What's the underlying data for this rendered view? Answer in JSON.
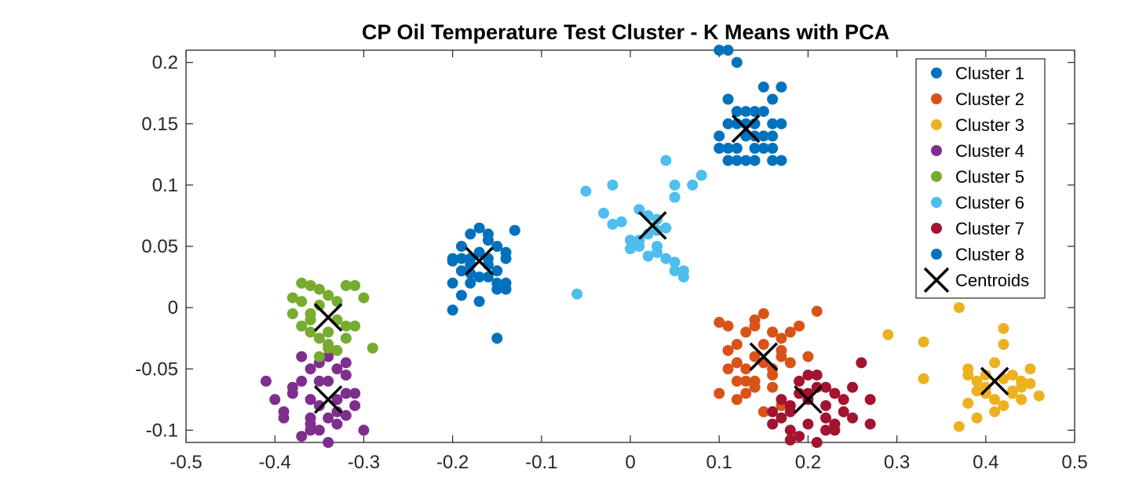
{
  "chart_data": {
    "type": "scatter",
    "title": "CP Oil Temperature Test Cluster - K Means with PCA",
    "xlabel": "",
    "ylabel": "",
    "xlim": [
      -0.5,
      0.5
    ],
    "ylim": [
      -0.11,
      0.21
    ],
    "xticks": [
      -0.5,
      -0.4,
      -0.3,
      -0.2,
      -0.1,
      0,
      0.1,
      0.2,
      0.3,
      0.4,
      0.5
    ],
    "xtick_labels": [
      "-0.5",
      "-0.4",
      "-0.3",
      "-0.2",
      "-0.1",
      "0",
      "0.1",
      "0.2",
      "0.3",
      "0.4",
      "0.5"
    ],
    "yticks": [
      -0.1,
      -0.05,
      0,
      0.05,
      0.1,
      0.15,
      0.2
    ],
    "ytick_labels": [
      "-0.1",
      "-0.05",
      "0",
      "0.05",
      "0.1",
      "0.15",
      "0.2"
    ],
    "grid": false,
    "legend_position": "top-right",
    "series": [
      {
        "name": "Cluster 1",
        "color": "#0072BD",
        "x": [
          0.1,
          0.11,
          0.12,
          0.11,
          0.12,
          0.13,
          0.14,
          0.15,
          0.14,
          0.16,
          0.17,
          0.1,
          0.11,
          0.13,
          0.15,
          0.16,
          0.17,
          0.12,
          0.14,
          0.11,
          0.16,
          0.13,
          0.15,
          0.12,
          0.1,
          0.17,
          0.14,
          0.12,
          0.15,
          0.16,
          0.12,
          0.14,
          0.11,
          0.13,
          0.16
        ],
        "y": [
          0.21,
          0.21,
          0.16,
          0.17,
          0.15,
          0.14,
          0.15,
          0.16,
          0.13,
          0.14,
          0.15,
          0.13,
          0.13,
          0.12,
          0.14,
          0.13,
          0.12,
          0.12,
          0.12,
          0.12,
          0.12,
          0.15,
          0.13,
          0.16,
          0.14,
          0.18,
          0.16,
          0.2,
          0.18,
          0.17,
          0.13,
          0.14,
          0.15,
          0.16,
          0.15
        ]
      },
      {
        "name": "Cluster 2",
        "color": "#D95319",
        "x": [
          0.1,
          0.11,
          0.12,
          0.13,
          0.14,
          0.15,
          0.16,
          0.17,
          0.1,
          0.11,
          0.13,
          0.14,
          0.15,
          0.16,
          0.17,
          0.18,
          0.19,
          0.12,
          0.14,
          0.16,
          0.18,
          0.2,
          0.21,
          0.11,
          0.12,
          0.13,
          0.15,
          0.17,
          0.16,
          0.14,
          0.12,
          0.15,
          0.17,
          0.13,
          0.14,
          0.16
        ],
        "y": [
          -0.012,
          -0.015,
          -0.03,
          -0.02,
          -0.01,
          -0.005,
          -0.02,
          -0.035,
          -0.07,
          -0.05,
          -0.06,
          -0.04,
          -0.045,
          -0.055,
          -0.025,
          -0.02,
          -0.015,
          -0.075,
          -0.065,
          -0.05,
          -0.045,
          -0.04,
          -0.003,
          -0.035,
          -0.06,
          -0.07,
          -0.085,
          -0.08,
          -0.02,
          -0.015,
          -0.045,
          -0.03,
          -0.04,
          -0.05,
          -0.06,
          -0.065
        ]
      },
      {
        "name": "Cluster 3",
        "color": "#EDB120",
        "x": [
          0.29,
          0.33,
          0.33,
          0.37,
          0.38,
          0.39,
          0.4,
          0.41,
          0.42,
          0.43,
          0.44,
          0.45,
          0.46,
          0.38,
          0.4,
          0.42,
          0.44,
          0.41,
          0.39,
          0.43,
          0.45,
          0.37,
          0.42,
          0.4,
          0.41,
          0.38,
          0.43,
          0.44,
          0.42,
          0.39
        ],
        "y": [
          -0.022,
          -0.028,
          -0.058,
          0,
          -0.05,
          -0.06,
          -0.055,
          -0.045,
          -0.03,
          -0.055,
          -0.065,
          -0.05,
          -0.072,
          -0.078,
          -0.07,
          -0.08,
          -0.06,
          -0.085,
          -0.09,
          -0.068,
          -0.062,
          -0.097,
          -0.017,
          -0.065,
          -0.075,
          -0.055,
          -0.07,
          -0.075,
          -0.058,
          -0.068
        ]
      },
      {
        "name": "Cluster 4",
        "color": "#7E2F8E",
        "x": [
          -0.41,
          -0.4,
          -0.39,
          -0.38,
          -0.37,
          -0.36,
          -0.35,
          -0.34,
          -0.33,
          -0.32,
          -0.31,
          -0.3,
          -0.39,
          -0.37,
          -0.36,
          -0.35,
          -0.33,
          -0.32,
          -0.34,
          -0.36,
          -0.38,
          -0.35,
          -0.33,
          -0.31,
          -0.36,
          -0.34,
          -0.32,
          -0.37,
          -0.35,
          -0.33,
          -0.34,
          -0.36,
          -0.32
        ],
        "y": [
          -0.06,
          -0.075,
          -0.09,
          -0.07,
          -0.06,
          -0.05,
          -0.045,
          -0.04,
          -0.05,
          -0.055,
          -0.07,
          -0.1,
          -0.085,
          -0.105,
          -0.09,
          -0.1,
          -0.095,
          -0.07,
          -0.11,
          -0.075,
          -0.065,
          -0.08,
          -0.085,
          -0.08,
          -0.095,
          -0.06,
          -0.045,
          -0.04,
          -0.06,
          -0.075,
          -0.09,
          -0.1,
          -0.088
        ]
      },
      {
        "name": "Cluster 5",
        "color": "#77AC30",
        "x": [
          -0.38,
          -0.37,
          -0.36,
          -0.35,
          -0.34,
          -0.33,
          -0.32,
          -0.31,
          -0.3,
          -0.29,
          -0.38,
          -0.37,
          -0.36,
          -0.35,
          -0.34,
          -0.33,
          -0.31,
          -0.36,
          -0.34,
          -0.32,
          -0.37,
          -0.35,
          -0.33,
          -0.34,
          -0.36,
          -0.32,
          -0.35
        ],
        "y": [
          0.008,
          0.02,
          0.018,
          0.015,
          0.01,
          0.005,
          0.018,
          0.018,
          0.008,
          -0.033,
          -0.005,
          -0.015,
          -0.02,
          -0.025,
          -0.03,
          -0.035,
          -0.015,
          -0.01,
          -0.02,
          -0.025,
          0.005,
          0.002,
          -0.01,
          -0.033,
          -0.005,
          -0.015,
          -0.04
        ]
      },
      {
        "name": "Cluster 6",
        "color": "#4DBEEE",
        "x": [
          -0.06,
          -0.05,
          -0.03,
          -0.02,
          -0.02,
          0,
          0.01,
          0.02,
          0.03,
          0.04,
          0.05,
          0.06,
          0.07,
          0.08,
          0.05,
          0.04,
          0.03,
          0.02,
          0.01,
          0,
          -0.01,
          0.02,
          0.03,
          0.04,
          0.05,
          0.06,
          0.01,
          0.03,
          0.05
        ],
        "y": [
          0.011,
          0.095,
          0.077,
          0.068,
          0.1,
          0.055,
          0.08,
          0.06,
          0.072,
          0.065,
          0.1,
          0.03,
          0.1,
          0.108,
          0.037,
          0.04,
          0.05,
          0.042,
          0.05,
          0.048,
          0.07,
          0.075,
          0.063,
          0.12,
          0.09,
          0.025,
          0.055,
          0.045,
          0.03
        ]
      },
      {
        "name": "Cluster 7",
        "color": "#A2142F",
        "x": [
          0.16,
          0.17,
          0.18,
          0.19,
          0.2,
          0.21,
          0.22,
          0.23,
          0.24,
          0.25,
          0.26,
          0.27,
          0.18,
          0.2,
          0.22,
          0.24,
          0.19,
          0.21,
          0.23,
          0.17,
          0.2,
          0.22,
          0.25,
          0.16,
          0.18,
          0.21,
          0.19,
          0.23,
          0.27,
          0.2,
          0.22,
          0.18
        ],
        "y": [
          -0.085,
          -0.075,
          -0.08,
          -0.07,
          -0.055,
          -0.055,
          -0.065,
          -0.07,
          -0.075,
          -0.065,
          -0.045,
          -0.075,
          -0.1,
          -0.095,
          -0.09,
          -0.085,
          -0.105,
          -0.11,
          -0.1,
          -0.09,
          -0.075,
          -0.08,
          -0.09,
          -0.095,
          -0.085,
          -0.065,
          -0.06,
          -0.095,
          -0.095,
          -0.07,
          -0.1,
          -0.108
        ]
      },
      {
        "name": "Cluster 8",
        "color": "#0072BD",
        "x": [
          -0.2,
          -0.2,
          -0.19,
          -0.19,
          -0.18,
          -0.18,
          -0.17,
          -0.17,
          -0.16,
          -0.16,
          -0.15,
          -0.15,
          -0.14,
          -0.14,
          -0.13,
          -0.2,
          -0.19,
          -0.18,
          -0.17,
          -0.16,
          -0.15,
          -0.14,
          -0.19,
          -0.17,
          -0.15,
          -0.18,
          -0.16,
          -0.2,
          -0.18,
          -0.15,
          -0.17,
          -0.19,
          -0.16,
          -0.14
        ],
        "y": [
          -0.002,
          0.02,
          0.03,
          0.05,
          0.04,
          0.06,
          0.065,
          0.045,
          0.055,
          0.025,
          0.015,
          0.03,
          0.04,
          0.02,
          0.063,
          0.04,
          0.01,
          0.035,
          0.005,
          0.04,
          -0.025,
          0.045,
          0.03,
          0.045,
          0.02,
          0.02,
          0.035,
          0.038,
          0.028,
          0.05,
          0.025,
          0.04,
          0.06,
          0.015
        ]
      }
    ],
    "centroids": {
      "name": "Centroids",
      "color": "#000000",
      "x": [
        0.13,
        0.15,
        0.41,
        -0.34,
        -0.34,
        0.025,
        0.2,
        -0.17
      ],
      "y": [
        0.146,
        -0.04,
        -0.06,
        -0.075,
        -0.008,
        0.067,
        -0.075,
        0.038
      ]
    }
  }
}
